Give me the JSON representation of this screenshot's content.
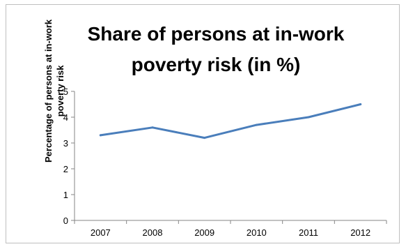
{
  "chart_data": {
    "type": "line",
    "title_lines": [
      "Share of persons at in-work",
      "poverty risk (in %)"
    ],
    "ylabel_lines": [
      "Percentage of persons at in-work",
      "poverty risk"
    ],
    "xlabel": "",
    "categories": [
      "2007",
      "2008",
      "2009",
      "2010",
      "2011",
      "2012"
    ],
    "series": [
      {
        "values": [
          3.3,
          3.6,
          3.2,
          3.7,
          4.0,
          4.5
        ]
      }
    ],
    "ylim": [
      0,
      5
    ],
    "yticks": [
      0,
      1,
      2,
      3,
      4,
      5
    ],
    "grid": false,
    "legend": "none",
    "line_color": "#4a7ebb"
  }
}
